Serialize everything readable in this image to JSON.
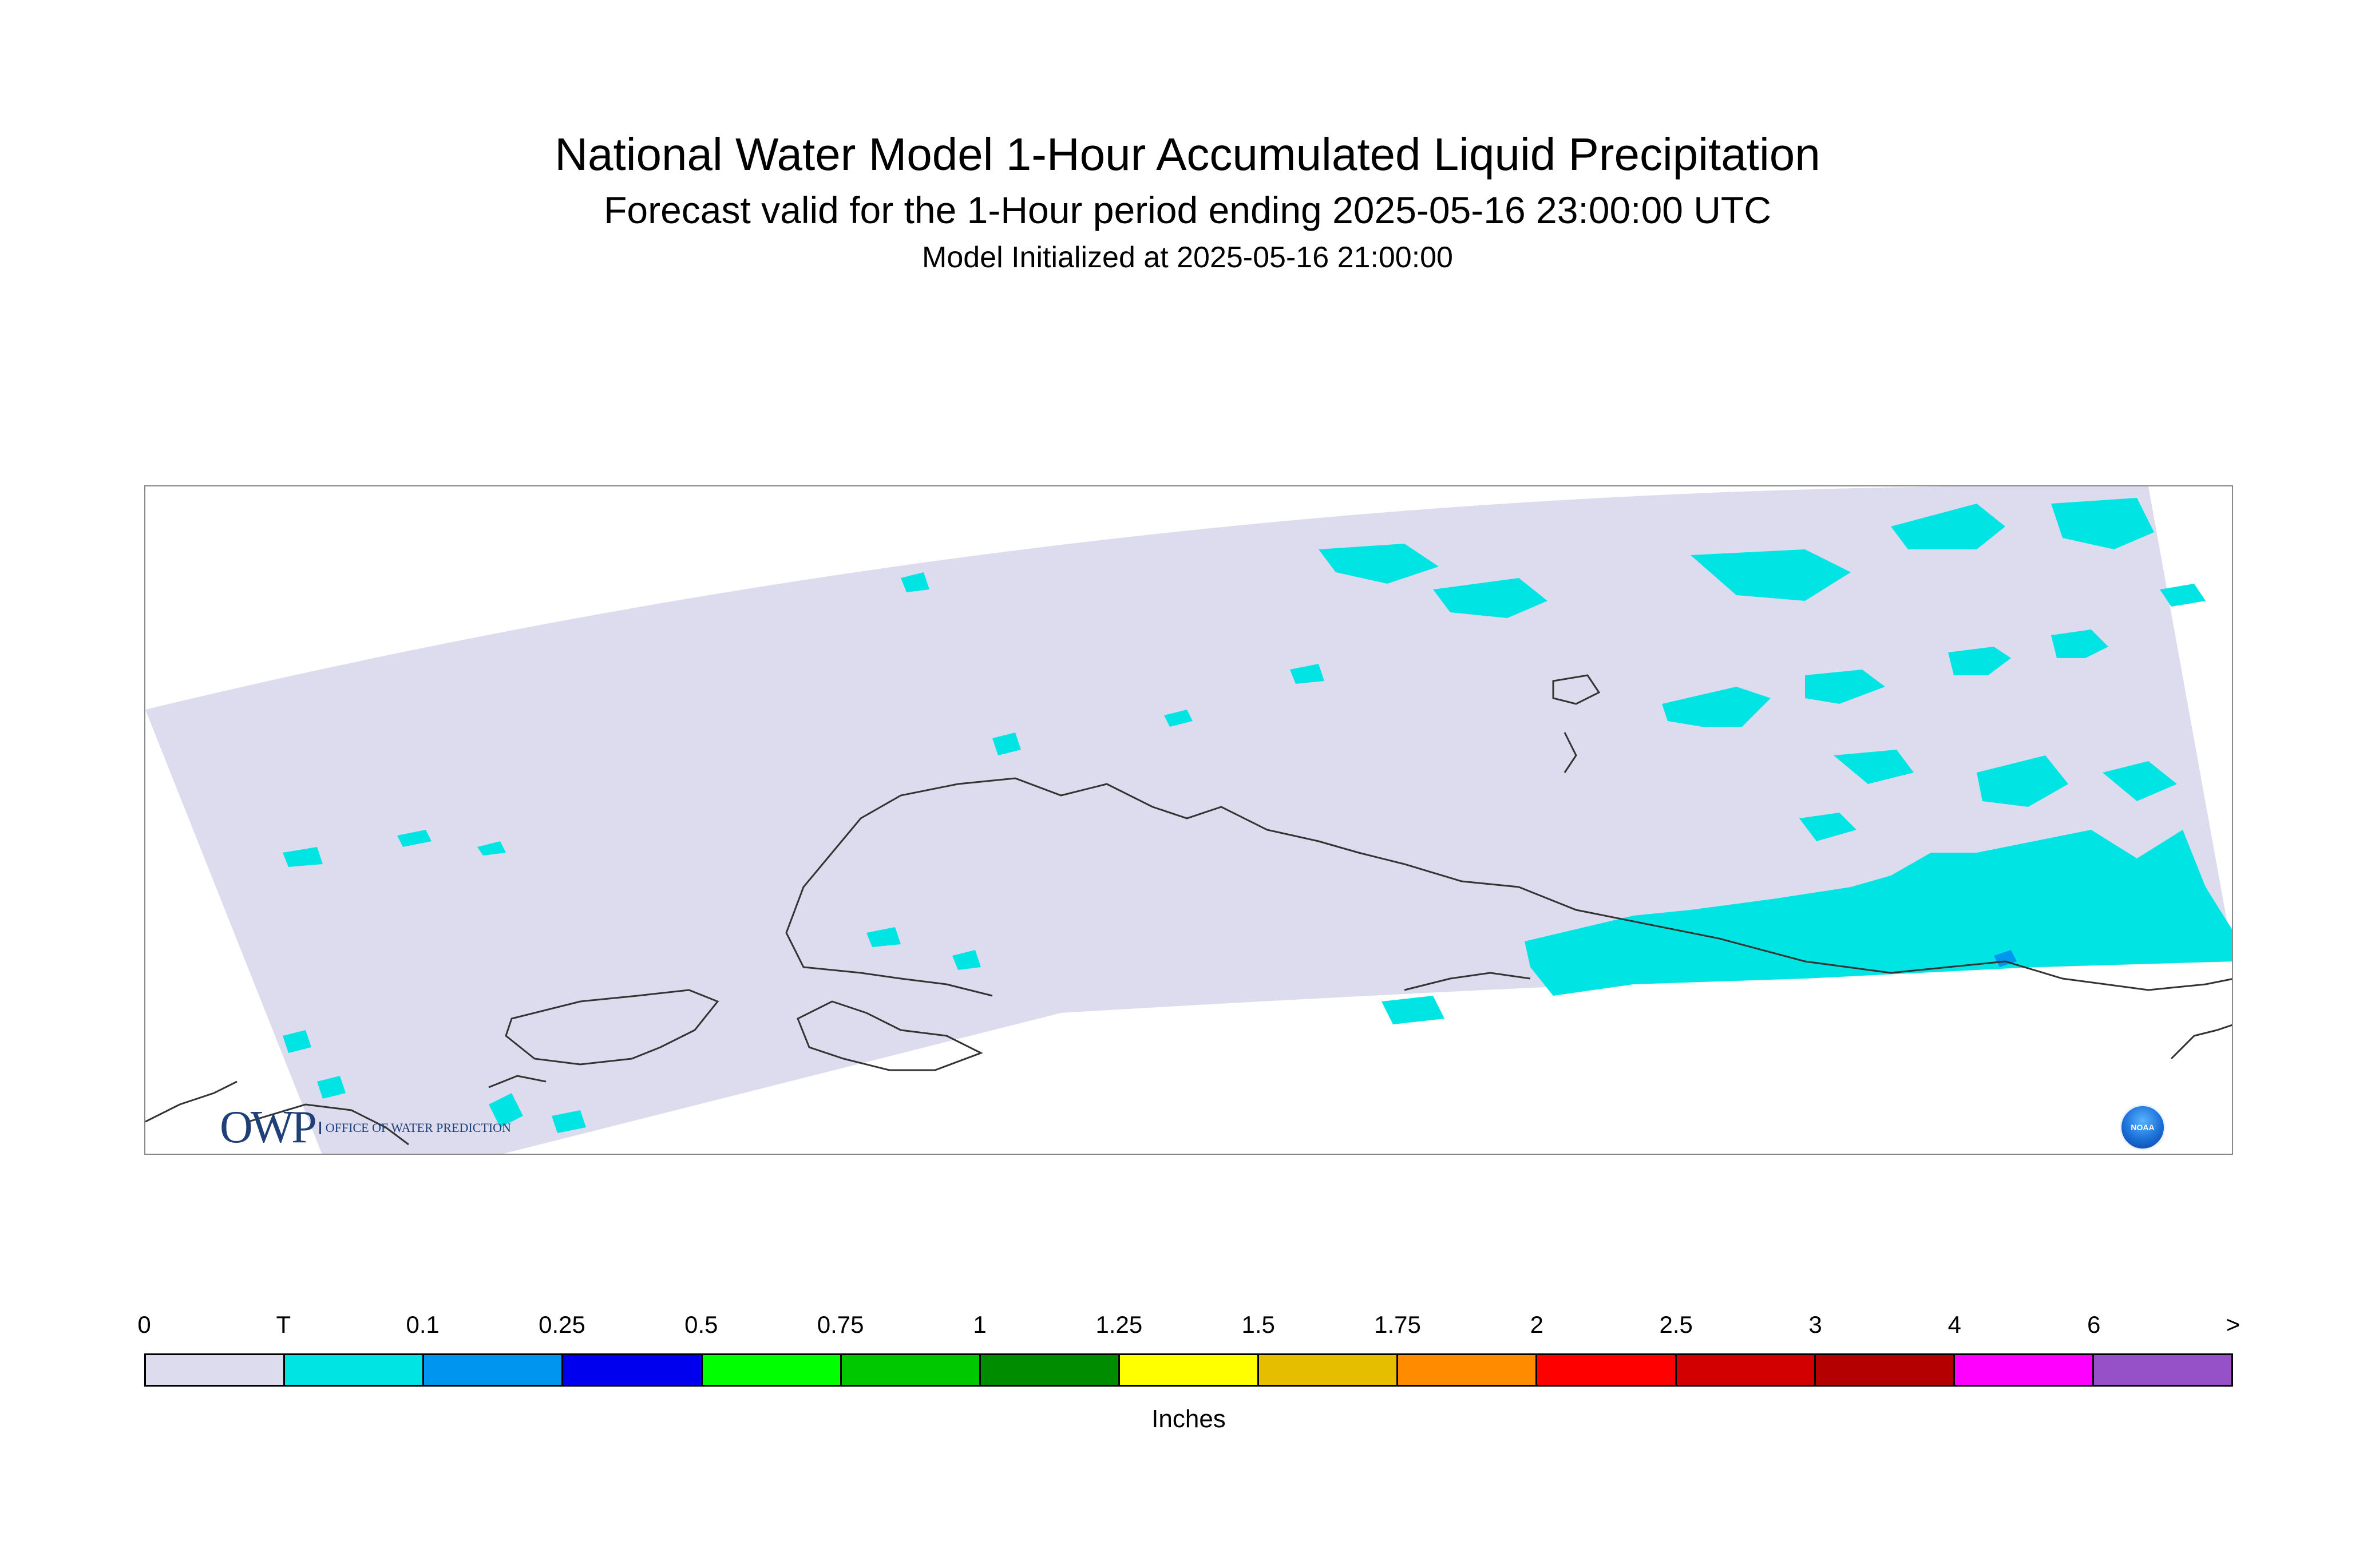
{
  "title": {
    "line1": "National Water Model 1-Hour Accumulated Liquid Precipitation",
    "line2": "Forecast valid for the 1-Hour period ending 2025-05-16 23:00:00 UTC",
    "line3": "Model Initialized at 2025-05-16 21:00:00"
  },
  "logos": {
    "owp_mark": "OWP",
    "owp_text": "OFFICE OF WATER PREDICTION",
    "noaa_text": "NOAA"
  },
  "legend": {
    "units": "Inches",
    "tick_labels": [
      "0",
      "T",
      "0.1",
      "0.25",
      "0.5",
      "0.75",
      "1",
      "1.25",
      "1.5",
      "1.75",
      "2",
      "2.5",
      "3",
      "4",
      "6",
      ">"
    ],
    "colors": [
      "#dcdcee",
      "#00e4e4",
      "#0096f0",
      "#0000ee",
      "#00ff00",
      "#00c800",
      "#008c00",
      "#ffff00",
      "#e6be00",
      "#ff8c00",
      "#ff0000",
      "#d20000",
      "#b40000",
      "#ff00ff",
      "#9650c8"
    ]
  },
  "map": {
    "domain_color": "#dcdcee",
    "precip_color": "#00e4e4",
    "light_rain_color": "#0096f0",
    "coast_color": "#333333"
  }
}
